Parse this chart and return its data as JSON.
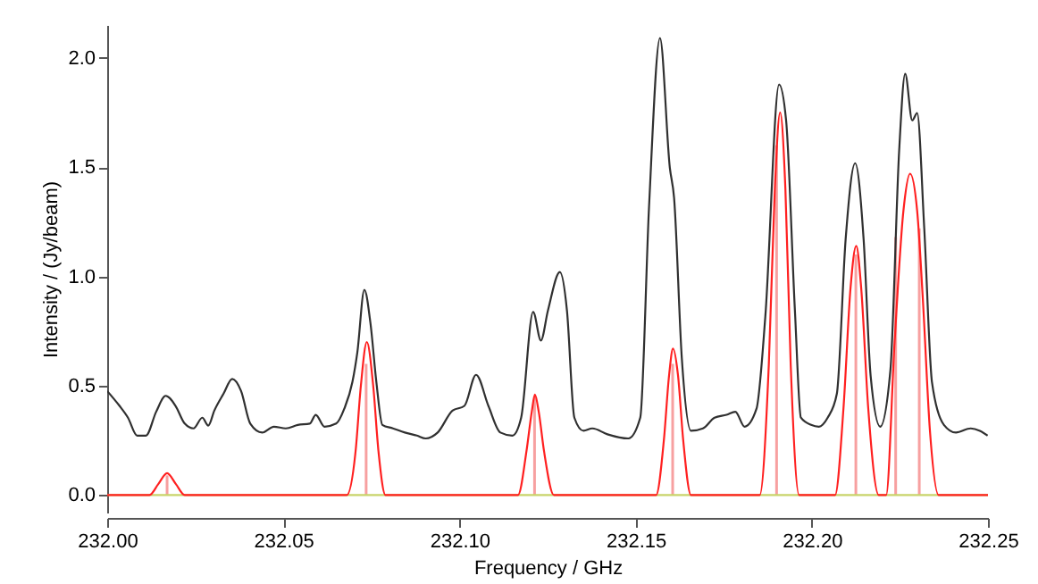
{
  "chart_data": {
    "type": "line",
    "xlabel": "Frequency / GHz",
    "ylabel": "Intensity / (Jy/beam)",
    "xlim": [
      232.0,
      232.25
    ],
    "ylim": [
      -0.08,
      2.15
    ],
    "xticks": [
      {
        "value": 232.0,
        "label": "232.00"
      },
      232.05,
      {
        "value": 232.1,
        "label": "232.10"
      },
      232.15,
      {
        "value": 232.2,
        "label": "232.20"
      },
      232.25
    ],
    "yticks": [
      {
        "value": 0,
        "label": "0.0"
      },
      0.5,
      {
        "value": 1,
        "label": "1.0"
      },
      1.5,
      {
        "value": 2,
        "label": "2.0"
      }
    ],
    "grid": false,
    "marker": "none",
    "line_style": "solid",
    "ref_lines": [
      {
        "axis": "y",
        "value": 0,
        "color": "#c8d46a"
      }
    ],
    "series": [
      {
        "type": "bar",
        "color": "#f7a0a0",
        "x": [
          232.017,
          232.0735,
          232.1213,
          232.1605,
          232.19,
          232.2125,
          232.2238,
          232.2305
        ],
        "values": [
          0.09,
          0.6,
          0.45,
          0.6,
          1.6,
          1.1,
          1.18,
          1.22
        ]
      },
      {
        "color": "#303030",
        "x": [
          232.0,
          232.0034,
          232.0059,
          232.0085,
          232.011,
          232.0139,
          232.0166,
          232.0194,
          232.022,
          232.0245,
          232.027,
          232.0287,
          232.0304,
          232.033,
          232.0355,
          232.038,
          232.0406,
          232.044,
          232.0473,
          232.0507,
          232.0541,
          232.0575,
          232.0592,
          232.0617,
          232.065,
          232.0673,
          232.0696,
          232.071,
          232.073,
          232.0747,
          232.0764,
          232.0781,
          232.0811,
          232.0845,
          232.0879,
          232.0904,
          232.0938,
          232.098,
          232.1014,
          232.1047,
          232.1082,
          232.1116,
          232.115,
          232.1175,
          232.1209,
          232.1231,
          232.1251,
          232.1285,
          232.1305,
          232.1326,
          232.1352,
          232.1377,
          232.142,
          232.1479,
          232.1513,
          232.1538,
          232.1569,
          232.1597,
          232.1609,
          232.1631,
          232.1657,
          232.1691,
          232.1724,
          232.1758,
          232.1783,
          232.1809,
          232.1843,
          232.1868,
          232.1907,
          232.1927,
          232.1952,
          232.1969,
          232.1998,
          232.202,
          232.2045,
          232.2071,
          232.2096,
          232.2123,
          232.2147,
          232.2167,
          232.2194,
          232.2223,
          232.2248,
          232.2265,
          232.2285,
          232.2299,
          232.2319,
          232.2341,
          232.2375,
          232.2409,
          232.2451,
          232.2477,
          232.2499
        ],
        "values": [
          0.476,
          0.41,
          0.354,
          0.272,
          0.272,
          0.381,
          0.454,
          0.408,
          0.327,
          0.305,
          0.354,
          0.318,
          0.386,
          0.463,
          0.531,
          0.476,
          0.327,
          0.286,
          0.313,
          0.305,
          0.321,
          0.327,
          0.367,
          0.313,
          0.327,
          0.395,
          0.517,
          0.653,
          0.939,
          0.789,
          0.517,
          0.321,
          0.305,
          0.286,
          0.272,
          0.259,
          0.286,
          0.386,
          0.408,
          0.55,
          0.408,
          0.286,
          0.272,
          0.354,
          0.838,
          0.707,
          0.844,
          1.02,
          0.844,
          0.354,
          0.294,
          0.305,
          0.278,
          0.259,
          0.354,
          1.32,
          2.09,
          1.497,
          1.36,
          0.626,
          0.294,
          0.305,
          0.354,
          0.367,
          0.381,
          0.313,
          0.395,
          0.816,
          1.878,
          1.714,
          0.844,
          0.354,
          0.321,
          0.313,
          0.354,
          0.463,
          1.17,
          1.518,
          1.17,
          0.544,
          0.313,
          0.571,
          1.578,
          1.927,
          1.714,
          1.747,
          1.224,
          0.517,
          0.321,
          0.286,
          0.305,
          0.294,
          0.272
        ]
      },
      {
        "color": "#ff2020",
        "x": [
          232.0,
          232.012,
          232.0145,
          232.017,
          232.0195,
          232.022,
          232.068,
          232.0705,
          232.072,
          232.0737,
          232.0755,
          232.077,
          232.079,
          232.1166,
          232.119,
          232.1205,
          232.1214,
          232.1225,
          232.124,
          232.1268,
          232.1558,
          232.158,
          232.1595,
          232.1606,
          232.162,
          232.1635,
          232.1657,
          232.1852,
          232.1878,
          232.1895,
          232.191,
          232.1925,
          232.194,
          232.1964,
          232.2066,
          232.209,
          232.211,
          232.2126,
          232.214,
          232.216,
          232.219,
          232.2211,
          232.2235,
          232.226,
          232.2279,
          232.2299,
          232.2315,
          232.2335,
          232.236,
          232.25
        ],
        "values": [
          0,
          0,
          0.05,
          0.1,
          0.05,
          0,
          0,
          0.2,
          0.5,
          0.7,
          0.5,
          0.2,
          0,
          0,
          0.2,
          0.38,
          0.46,
          0.38,
          0.2,
          0,
          0,
          0.25,
          0.55,
          0.67,
          0.55,
          0.25,
          0,
          0,
          0.6,
          1.4,
          1.75,
          1.4,
          0.6,
          0,
          0,
          0.4,
          0.95,
          1.14,
          0.95,
          0.4,
          0,
          0,
          0.7,
          1.3,
          1.47,
          1.3,
          0.9,
          0.3,
          0,
          0
        ]
      }
    ]
  }
}
